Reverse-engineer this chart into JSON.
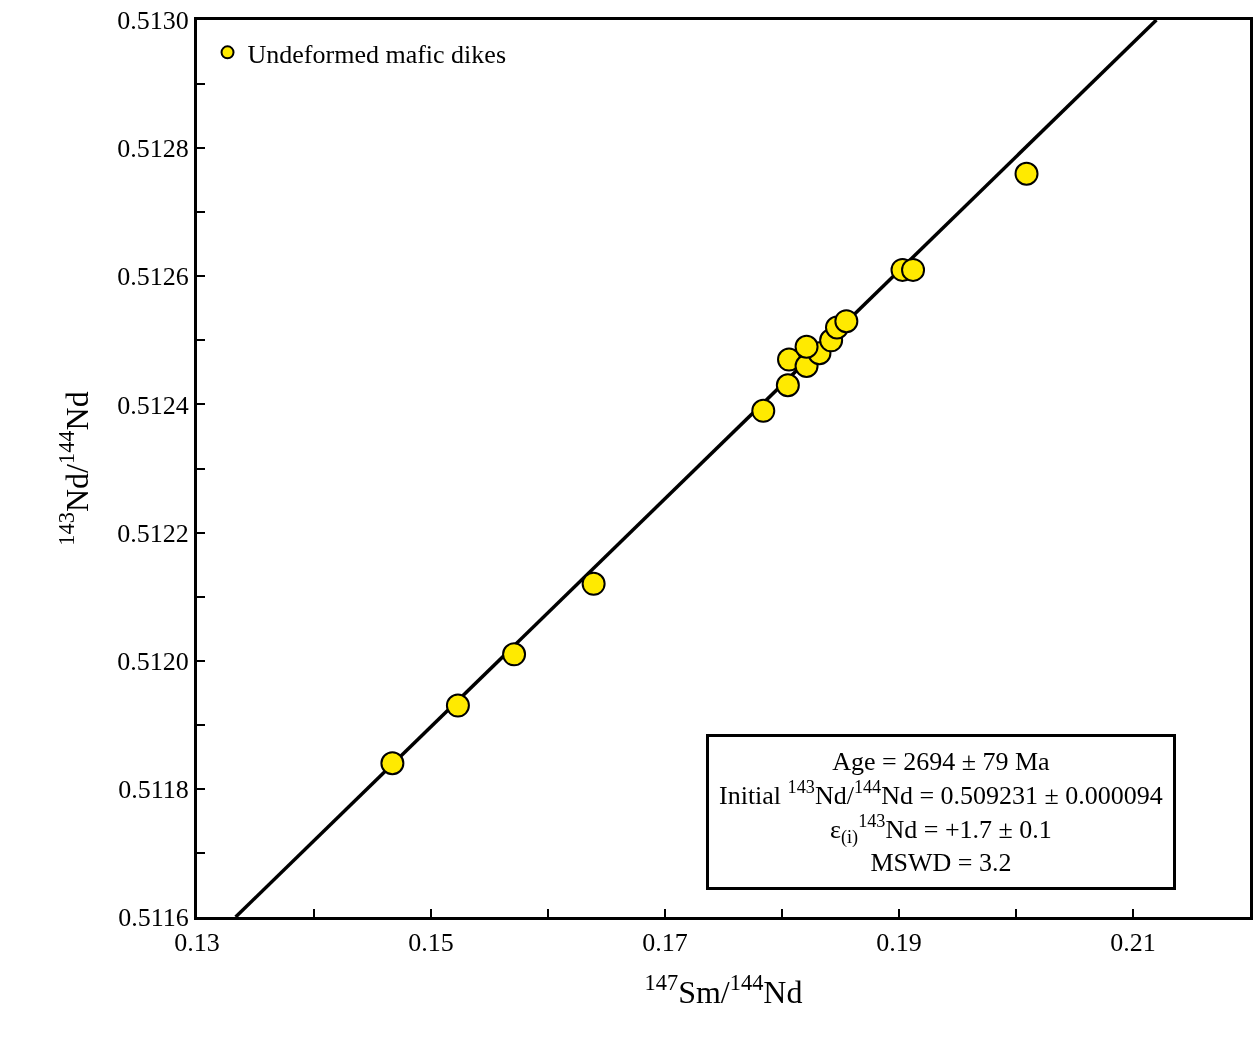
{
  "chart_data": {
    "type": "scatter",
    "xlabel": "$^{147}$Sm/$^{144}$Nd",
    "ylabel": "$^{143}$Nd/$^{144}$Nd",
    "x": [
      0.1467,
      0.1523,
      0.1571,
      0.1639,
      0.1784,
      0.1805,
      0.1806,
      0.1821,
      0.1832,
      0.1821,
      0.1842,
      0.1847,
      0.1855,
      0.1903,
      0.1912,
      0.2009
    ],
    "series": [
      {
        "name": "Undeformed mafic dikes",
        "color": "#ffea00",
        "marker": "circle",
        "values": [
          0.51184,
          0.51193,
          0.51201,
          0.51212,
          0.51239,
          0.51243,
          0.51247,
          0.51246,
          0.51248,
          0.51249,
          0.5125,
          0.51252,
          0.51253,
          0.51261,
          0.51261,
          0.51276
        ]
      },
      {
        "type": "line",
        "color": "#000000",
        "line_style": "solid",
        "x": [
          0.1333,
          0.212
        ],
        "values": [
          0.5116,
          0.513
        ]
      }
    ],
    "xlim": [
      0.13,
      0.22
    ],
    "ylim": [
      0.5116,
      0.513
    ],
    "xticks": [
      0.13,
      {
        "value": 0.14,
        "label": null
      },
      0.15,
      {
        "value": 0.16,
        "label": null
      },
      0.17,
      {
        "value": 0.18,
        "label": null
      },
      0.19,
      {
        "value": 0.2,
        "label": null
      },
      0.21
    ],
    "yticks": [
      {
        "value": 0.5116,
        "label": "0.5116"
      },
      {
        "value": 0.5117,
        "label": null
      },
      {
        "value": 0.5118,
        "label": "0.5118"
      },
      {
        "value": 0.5119,
        "label": null
      },
      {
        "value": 0.512,
        "label": "0.5120"
      },
      {
        "value": 0.5121,
        "label": null
      },
      {
        "value": 0.5122,
        "label": "0.5122"
      },
      {
        "value": 0.5123,
        "label": null
      },
      {
        "value": 0.5124,
        "label": "0.5124"
      },
      {
        "value": 0.5125,
        "label": null
      },
      {
        "value": 0.5126,
        "label": "0.5126"
      },
      {
        "value": 0.5127,
        "label": null
      },
      {
        "value": 0.5128,
        "label": "0.5128"
      },
      {
        "value": 0.5129,
        "label": null
      },
      {
        "value": 0.513,
        "label": "0.5130"
      }
    ],
    "legend": "top left",
    "annotations": [
      "Age = 2694 ± 79 Ma",
      "Initial $^{143}$Nd/$^{144}$Nd = 0.509231 ± 0.000094",
      "ε$_{(i)}$$^{143}$Nd = +1.7 ± 0.1",
      "MSWD = 3.2"
    ]
  }
}
